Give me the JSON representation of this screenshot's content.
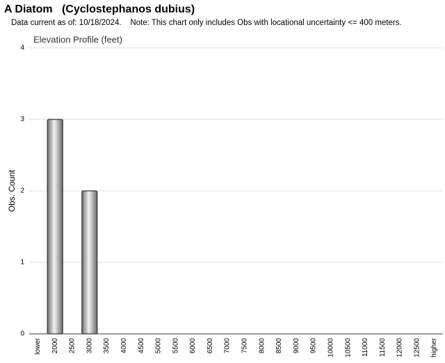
{
  "chart_data": {
    "type": "bar",
    "title": "A Diatom   (Cyclostephanos dubius)",
    "subtitle": "Data current as of: 10/18/2024.    Note: This chart only includes Obs with locational uncertainty <= 400 meters.",
    "chart_title": "Elevation Profile (feet)",
    "y_label": "Obs. Count",
    "categories": [
      "lower",
      "2000",
      "2500",
      "3000",
      "3500",
      "4000",
      "4500",
      "5000",
      "5500",
      "6000",
      "6500",
      "7000",
      "7500",
      "8000",
      "8500",
      "9000",
      "9500",
      "10000",
      "10500",
      "11000",
      "11500",
      "12000",
      "12500",
      "higher"
    ],
    "values": [
      0,
      3,
      0,
      2,
      0,
      0,
      0,
      0,
      0,
      0,
      0,
      0,
      0,
      0,
      0,
      0,
      0,
      0,
      0,
      0,
      0,
      0,
      0,
      0
    ],
    "color": "#9a9a9a",
    "ylim": [
      0,
      4
    ],
    "yticks": [
      0,
      1,
      2,
      3,
      4
    ],
    "grid": true
  }
}
